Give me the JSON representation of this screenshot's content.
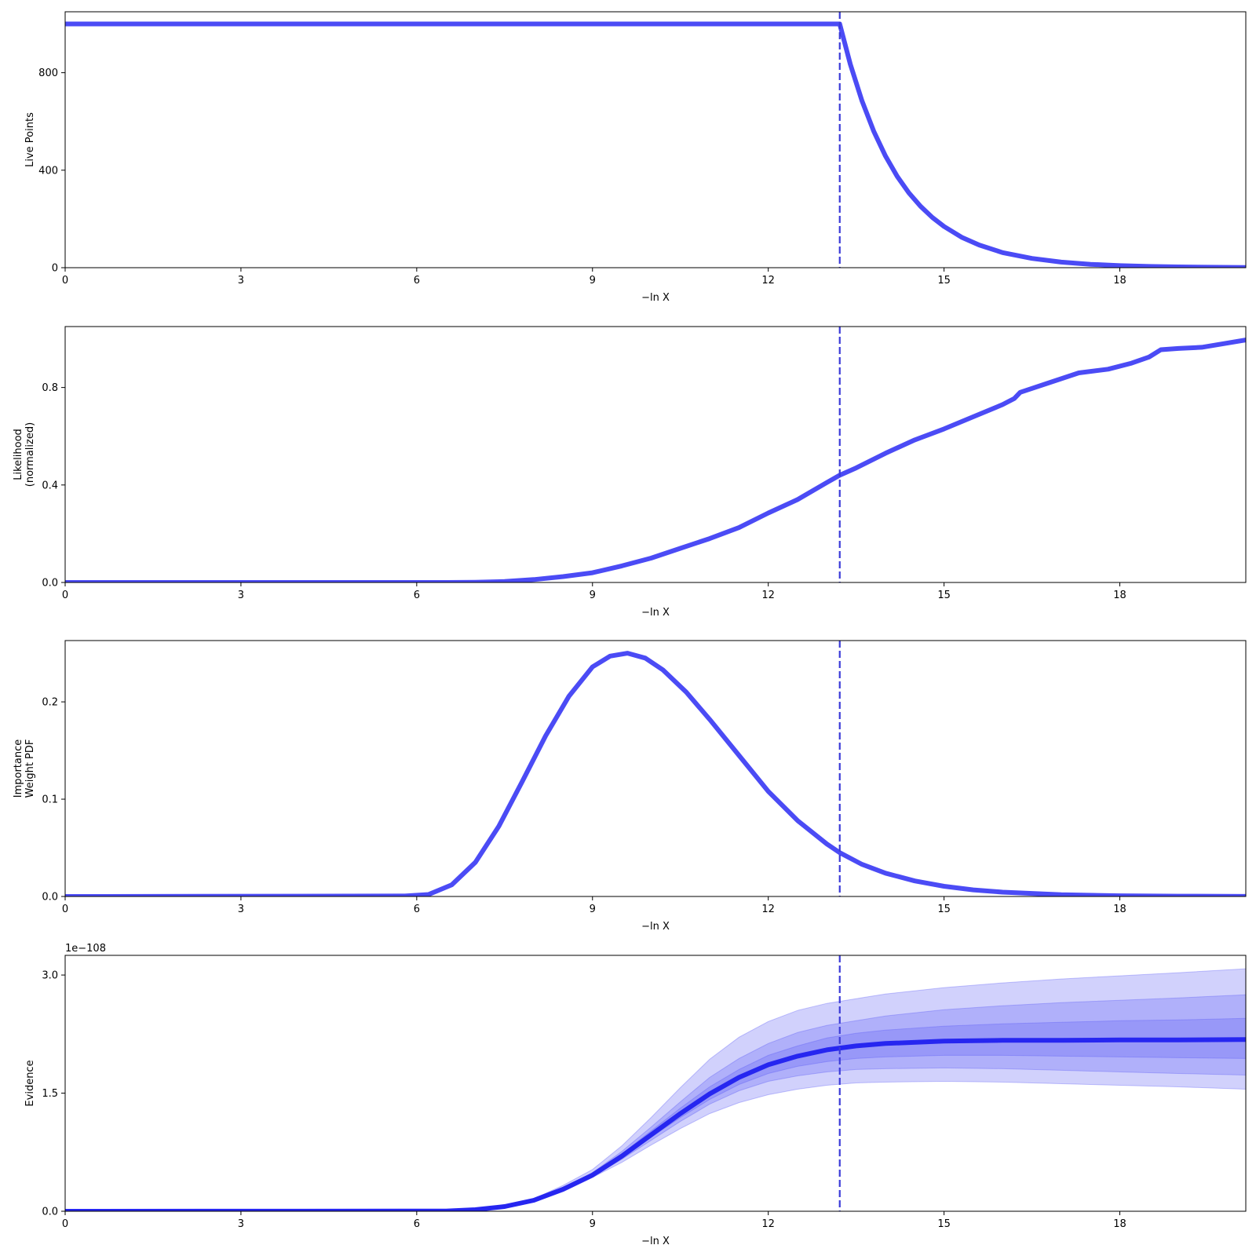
{
  "chart_data": [
    {
      "type": "line",
      "xlabel": "−ln X",
      "ylabel": [
        "Live Points"
      ],
      "xlim": [
        0,
        20.15
      ],
      "ylim": [
        0,
        1050
      ],
      "xticks": [
        0,
        3,
        6,
        9,
        12,
        15,
        18
      ],
      "yticks": [
        0,
        400,
        800
      ],
      "yticklabels": [
        "0",
        "400",
        "800"
      ],
      "vline_x": 13.22,
      "color": "#4b4bf5",
      "series": [
        {
          "x": [
            0,
            13.2,
            13.22,
            13.4,
            13.6,
            13.8,
            14.0,
            14.2,
            14.4,
            14.6,
            14.8,
            15.0,
            15.3,
            15.6,
            16.0,
            16.5,
            17.0,
            17.5,
            18.0,
            18.5,
            19.0,
            19.5,
            20.15
          ],
          "y": [
            1000,
            1000,
            1000,
            835,
            684,
            560,
            458,
            375,
            307,
            252,
            206,
            169,
            125,
            93,
            62,
            38,
            23,
            14,
            8.5,
            5.2,
            3.1,
            1.9,
            1.0
          ]
        }
      ]
    },
    {
      "type": "line",
      "xlabel": "−ln X",
      "ylabel": [
        "Likelihood",
        "(normalized)"
      ],
      "xlim": [
        0,
        20.15
      ],
      "ylim": [
        0,
        1.05
      ],
      "xticks": [
        0,
        3,
        6,
        9,
        12,
        15,
        18
      ],
      "yticks": [
        0,
        0.4,
        0.8
      ],
      "yticklabels": [
        "0.0",
        "0.4",
        "0.8"
      ],
      "vline_x": 13.22,
      "color": "#4b4bf5",
      "series": [
        {
          "x": [
            0,
            6.5,
            7.0,
            7.5,
            8.0,
            8.5,
            9.0,
            9.5,
            10.0,
            10.5,
            11.0,
            11.5,
            12.0,
            12.5,
            13.0,
            13.22,
            13.5,
            14.0,
            14.5,
            15.0,
            15.5,
            16.0,
            16.2,
            16.3,
            16.8,
            17.3,
            17.8,
            18.2,
            18.5,
            18.7,
            19.0,
            19.4,
            20.15
          ],
          "y": [
            0,
            0,
            0.001,
            0.004,
            0.012,
            0.024,
            0.04,
            0.068,
            0.1,
            0.14,
            0.18,
            0.225,
            0.285,
            0.34,
            0.41,
            0.44,
            0.47,
            0.53,
            0.585,
            0.63,
            0.68,
            0.73,
            0.755,
            0.78,
            0.82,
            0.86,
            0.875,
            0.9,
            0.925,
            0.955,
            0.96,
            0.965,
            0.995
          ]
        }
      ]
    },
    {
      "type": "line",
      "xlabel": "−ln X",
      "ylabel": [
        "Importance",
        "Weight PDF"
      ],
      "xlim": [
        0,
        20.15
      ],
      "ylim": [
        0,
        0.263
      ],
      "xticks": [
        0,
        3,
        6,
        9,
        12,
        15,
        18
      ],
      "yticks": [
        0,
        0.1,
        0.2
      ],
      "yticklabels": [
        "0.0",
        "0.1",
        "0.2"
      ],
      "vline_x": 13.22,
      "color": "#4b4bf5",
      "series": [
        {
          "x": [
            0,
            5.8,
            6.2,
            6.6,
            7.0,
            7.4,
            7.8,
            8.2,
            8.6,
            9.0,
            9.3,
            9.6,
            9.9,
            10.2,
            10.6,
            11.0,
            11.5,
            12.0,
            12.5,
            13.0,
            13.22,
            13.6,
            14.0,
            14.5,
            15.0,
            15.5,
            16.0,
            17.0,
            18.0,
            19.0,
            20.15
          ],
          "y": [
            0,
            0.0005,
            0.002,
            0.012,
            0.035,
            0.072,
            0.118,
            0.165,
            0.206,
            0.236,
            0.247,
            0.25,
            0.245,
            0.233,
            0.21,
            0.182,
            0.145,
            0.108,
            0.078,
            0.054,
            0.045,
            0.033,
            0.024,
            0.016,
            0.0105,
            0.0068,
            0.0044,
            0.0018,
            0.0007,
            0.0003,
            0.0001
          ]
        }
      ]
    },
    {
      "type": "area",
      "xlabel": "−ln X",
      "ylabel": [
        "Evidence"
      ],
      "offset_text": "1e−108",
      "xlim": [
        0,
        20.15
      ],
      "ylim": [
        0,
        3.25
      ],
      "xticks": [
        0,
        3,
        6,
        9,
        12,
        15,
        18
      ],
      "yticks": [
        0,
        1.5,
        3.0
      ],
      "yticklabels": [
        "0.0",
        "1.5",
        "3.0"
      ],
      "vline_x": 13.22,
      "color": "#2626f0",
      "band_color": "#5a5af5",
      "x": [
        0,
        6.5,
        7.0,
        7.5,
        8.0,
        8.5,
        9.0,
        9.5,
        10.0,
        10.5,
        11.0,
        11.5,
        12.0,
        12.5,
        13.0,
        13.5,
        14.0,
        15.0,
        16.0,
        17.0,
        18.0,
        19.0,
        20.15
      ],
      "median": [
        0,
        0.003,
        0.02,
        0.06,
        0.14,
        0.28,
        0.46,
        0.7,
        0.97,
        1.24,
        1.49,
        1.7,
        1.86,
        1.97,
        2.05,
        2.1,
        2.13,
        2.16,
        2.17,
        2.17,
        2.175,
        2.175,
        2.18
      ],
      "bands": [
        {
          "lower": [
            0,
            0.003,
            0.018,
            0.055,
            0.12,
            0.25,
            0.43,
            0.62,
            0.84,
            1.05,
            1.24,
            1.38,
            1.48,
            1.55,
            1.6,
            1.63,
            1.64,
            1.65,
            1.64,
            1.62,
            1.6,
            1.58,
            1.55
          ],
          "upper": [
            0,
            0.003,
            0.022,
            0.07,
            0.16,
            0.33,
            0.53,
            0.83,
            1.19,
            1.57,
            1.93,
            2.21,
            2.41,
            2.55,
            2.64,
            2.7,
            2.76,
            2.84,
            2.9,
            2.95,
            2.99,
            3.03,
            3.08
          ]
        },
        {
          "lower": [
            0,
            0.003,
            0.019,
            0.058,
            0.13,
            0.26,
            0.44,
            0.66,
            0.9,
            1.14,
            1.36,
            1.53,
            1.65,
            1.72,
            1.77,
            1.8,
            1.81,
            1.82,
            1.81,
            1.79,
            1.77,
            1.75,
            1.73
          ],
          "upper": [
            0,
            0.003,
            0.021,
            0.064,
            0.15,
            0.3,
            0.49,
            0.76,
            1.07,
            1.39,
            1.7,
            1.94,
            2.13,
            2.27,
            2.36,
            2.42,
            2.48,
            2.56,
            2.61,
            2.65,
            2.68,
            2.71,
            2.75
          ]
        },
        {
          "lower": [
            0,
            0.003,
            0.0195,
            0.059,
            0.135,
            0.27,
            0.45,
            0.68,
            0.94,
            1.19,
            1.42,
            1.61,
            1.75,
            1.84,
            1.9,
            1.94,
            1.96,
            1.98,
            1.98,
            1.97,
            1.96,
            1.95,
            1.94
          ],
          "upper": [
            0,
            0.003,
            0.0205,
            0.062,
            0.145,
            0.29,
            0.47,
            0.73,
            1.02,
            1.31,
            1.58,
            1.8,
            1.98,
            2.1,
            2.2,
            2.26,
            2.3,
            2.35,
            2.38,
            2.4,
            2.42,
            2.43,
            2.45
          ]
        }
      ]
    }
  ]
}
